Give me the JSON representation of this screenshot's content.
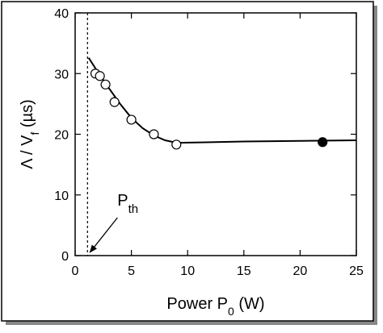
{
  "chart_data": {
    "type": "scatter",
    "xlabel": [
      "Power P",
      "0",
      " (W)"
    ],
    "ylabel": [
      "Λ / V",
      "f",
      " (µs)"
    ],
    "xlim": [
      0,
      25
    ],
    "xticks": [
      0,
      5,
      10,
      15,
      20,
      25
    ],
    "ylim": [
      0,
      40
    ],
    "yticks": [
      0,
      10,
      20,
      30,
      40
    ],
    "threshold_x": 1.1,
    "annotation": [
      "P",
      "th"
    ],
    "fit": {
      "color": "#000000",
      "x": [
        1.2,
        2,
        3,
        4,
        5,
        6,
        7,
        8,
        9,
        9.5,
        15,
        20,
        25
      ],
      "values": [
        32.6,
        30.3,
        27.6,
        25.0,
        22.7,
        21.0,
        19.8,
        19.0,
        18.6,
        18.6,
        18.8,
        18.9,
        19.0
      ]
    },
    "series": [
      {
        "marker": "open",
        "color": "#000000",
        "x": [
          1.8,
          2.2,
          2.7,
          3.5,
          5,
          7,
          9
        ],
        "values": [
          30.0,
          29.6,
          28.2,
          25.3,
          22.4,
          20.0,
          18.3
        ]
      },
      {
        "marker": "filled",
        "color": "#000000",
        "x": [
          22
        ],
        "values": [
          18.7
        ]
      }
    ]
  }
}
